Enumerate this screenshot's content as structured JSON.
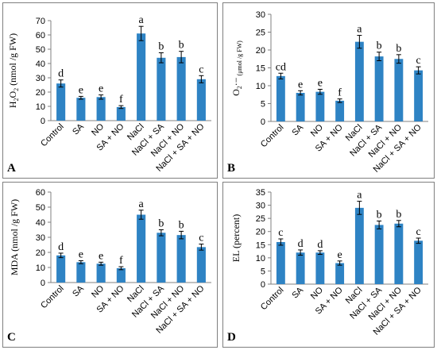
{
  "bar_color": "#2e83c4",
  "chart_data": [
    {
      "type": "bar",
      "panel_label": "A",
      "ylabel_parts": [
        "H",
        "2",
        "O",
        "2",
        " (nmol /g FW)"
      ],
      "categories": [
        "Control",
        "SA",
        "NO",
        "SA + NO",
        "NaCl",
        "NaCl + SA",
        "NaCl + NO",
        "NaCl + SA + NO"
      ],
      "values": [
        26,
        16,
        16.5,
        9.5,
        61,
        44,
        44.5,
        29
      ],
      "errors": [
        2.5,
        1,
        1.5,
        1,
        5,
        3.5,
        4,
        2.5
      ],
      "letters": [
        "d",
        "e",
        "e",
        "f",
        "a",
        "b",
        "b",
        "c"
      ],
      "ylim": [
        0,
        70
      ],
      "yticks": [
        0,
        10,
        20,
        30,
        40,
        50,
        60,
        70
      ]
    },
    {
      "type": "bar",
      "panel_label": "B",
      "ylabel_parts": [
        "O",
        "2",
        "·−",
        " (μmol /g FW)"
      ],
      "categories": [
        "Control",
        "SA",
        "NO",
        "SA + NO",
        "NaCl",
        "NaCl + SA",
        "NaCl + NO",
        "NaCl + SA + NO"
      ],
      "values": [
        12.7,
        8,
        8.3,
        5.8,
        22.3,
        18.2,
        17.5,
        14.3
      ],
      "errors": [
        0.8,
        0.6,
        0.7,
        0.5,
        1.8,
        1.2,
        1.2,
        1
      ],
      "letters": [
        "cd",
        "e",
        "e",
        "f",
        "a",
        "b",
        "b",
        "c"
      ],
      "ylim": [
        0,
        30
      ],
      "yticks": [
        0,
        5,
        10,
        15,
        20,
        25,
        30
      ]
    },
    {
      "type": "bar",
      "panel_label": "C",
      "ylabel_parts": [
        "MDA (nmol /g FW)"
      ],
      "categories": [
        "Control",
        "SA",
        "NO",
        "SA + NO",
        "NaCl",
        "NaCl + SA",
        "NaCl + NO",
        "NaCl + SA + NO"
      ],
      "values": [
        18,
        13.5,
        12.5,
        9.5,
        45,
        33,
        31.5,
        23.5
      ],
      "errors": [
        1.5,
        1,
        1,
        1,
        3,
        2,
        2.5,
        2
      ],
      "letters": [
        "d",
        "e",
        "e",
        "f",
        "a",
        "b",
        "b",
        "c"
      ],
      "ylim": [
        0,
        60
      ],
      "yticks": [
        0,
        10,
        20,
        30,
        40,
        50,
        60
      ]
    },
    {
      "type": "bar",
      "panel_label": "D",
      "ylabel_parts": [
        "EL (percent)"
      ],
      "categories": [
        "Control",
        "SA",
        "NO",
        "SA + NO",
        "NaCl",
        "NaCl + SA",
        "NaCl + NO",
        "NaCl + SA + NO"
      ],
      "values": [
        16,
        12,
        12,
        8,
        29,
        22.5,
        23,
        16.5
      ],
      "errors": [
        1.2,
        1,
        0.7,
        0.8,
        2.5,
        1.5,
        1.2,
        1
      ],
      "letters": [
        "c",
        "d",
        "d",
        "e",
        "a",
        "b",
        "b",
        "c"
      ],
      "ylim": [
        0,
        35
      ],
      "yticks": [
        0,
        5,
        10,
        15,
        20,
        25,
        30,
        35
      ]
    }
  ]
}
